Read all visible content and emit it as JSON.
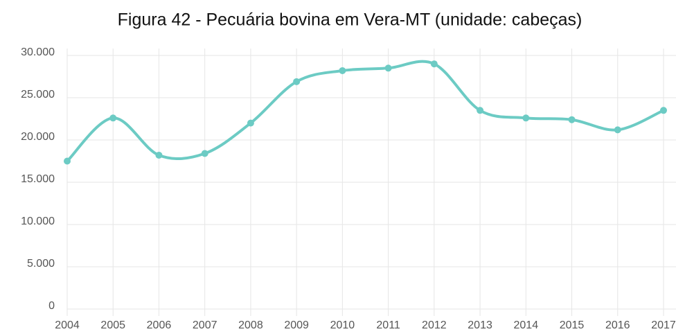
{
  "chart_data": {
    "type": "line",
    "title": "Figura 42 - Pecuária bovina em Vera-MT (unidade: cabeças)",
    "x": [
      2004,
      2005,
      2006,
      2007,
      2008,
      2009,
      2010,
      2011,
      2012,
      2013,
      2014,
      2015,
      2016,
      2017
    ],
    "series": [
      {
        "name": "Cabeças",
        "color": "#6ccbc4",
        "values": [
          17500,
          22600,
          18200,
          18400,
          22000,
          26900,
          28200,
          28500,
          29000,
          23500,
          22600,
          22400,
          21200,
          23500
        ]
      }
    ],
    "xlim": [
      2004,
      2017
    ],
    "xticks": [
      2004,
      2005,
      2006,
      2007,
      2008,
      2009,
      2010,
      2011,
      2012,
      2013,
      2014,
      2015,
      2016,
      2017
    ],
    "ylim": [
      0,
      30000
    ],
    "yticks": [
      0,
      {
        "value": 5000,
        "label": "5.000"
      },
      {
        "value": 10000,
        "label": "10.000"
      },
      {
        "value": 15000,
        "label": "15.000"
      },
      {
        "value": 20000,
        "label": "20.000"
      },
      {
        "value": 25000,
        "label": "25.000"
      },
      {
        "value": 30000,
        "label": "30.000"
      }
    ],
    "grid": true
  }
}
